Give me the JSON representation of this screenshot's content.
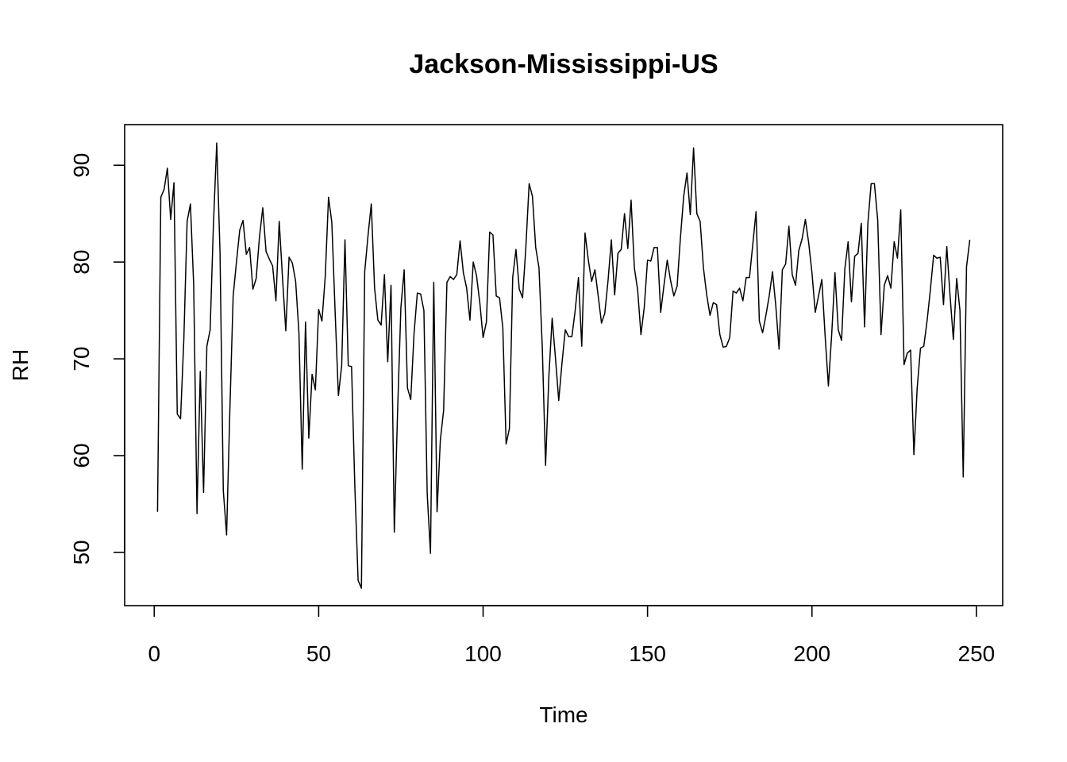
{
  "chart_data": {
    "type": "line",
    "title": "Jackson-Mississippi-US",
    "xlabel": "Time",
    "ylabel": "RH",
    "xlim": [
      -9,
      258
    ],
    "ylim": [
      44.5,
      94.2
    ],
    "x_ticks": [
      0,
      50,
      100,
      150,
      200,
      250
    ],
    "y_ticks": [
      50,
      60,
      70,
      80,
      90
    ],
    "grid": false,
    "legend": "none",
    "line_color": "#000000",
    "series": [
      {
        "values": [
          54.2,
          86.7,
          87.5,
          89.7,
          84.4,
          88.2,
          64.3,
          63.8,
          72.0,
          84.2,
          86.0,
          77.6,
          54.0,
          68.7,
          56.2,
          71.3,
          73.0,
          83.9,
          92.3,
          81.0,
          56.4,
          51.8,
          64.7,
          76.5,
          80.0,
          83.3,
          84.3,
          80.8,
          81.5,
          77.2,
          78.3,
          82.6,
          85.6,
          81.1,
          80.3,
          79.6,
          76.0,
          84.2,
          78.4,
          72.9,
          80.5,
          79.9,
          78.0,
          72.7,
          58.6,
          73.8,
          61.8,
          68.4,
          66.8,
          75.1,
          73.9,
          78.5,
          86.7,
          84.1,
          74.9,
          66.2,
          69.3,
          82.3,
          69.3,
          69.2,
          56.8,
          47.1,
          46.3,
          79.0,
          82.7,
          86.0,
          77.3,
          74.0,
          73.5,
          78.7,
          69.7,
          77.6,
          52.1,
          64.6,
          75.3,
          79.2,
          67.0,
          65.8,
          72.6,
          76.8,
          76.7,
          75.0,
          56.1,
          49.9,
          77.9,
          54.2,
          61.6,
          64.7,
          77.9,
          78.5,
          78.2,
          78.7,
          82.2,
          78.9,
          77.3,
          74.0,
          80.0,
          78.6,
          75.8,
          72.2,
          73.8,
          83.1,
          82.8,
          76.5,
          76.3,
          73.2,
          61.2,
          62.8,
          78.4,
          81.3,
          77.2,
          76.3,
          81.5,
          88.1,
          86.8,
          81.5,
          79.4,
          71.2,
          59.0,
          68.2,
          74.2,
          70.1,
          65.7,
          69.6,
          73.0,
          72.3,
          72.3,
          75.0,
          78.4,
          71.3,
          83.0,
          80.2,
          78.0,
          79.2,
          76.5,
          73.7,
          74.7,
          78.1,
          82.3,
          76.6,
          80.9,
          81.3,
          85.0,
          81.4,
          86.4,
          79.4,
          77.1,
          72.5,
          75.3,
          80.2,
          80.1,
          81.5,
          81.5,
          74.8,
          77.6,
          80.2,
          78.1,
          76.5,
          77.5,
          82.5,
          86.8,
          89.2,
          84.9,
          91.8,
          85.0,
          84.2,
          79.4,
          76.6,
          74.5,
          75.8,
          75.6,
          72.5,
          71.2,
          71.3,
          72.2,
          77.0,
          76.8,
          77.3,
          76.0,
          78.4,
          78.4,
          81.8,
          85.2,
          73.9,
          72.7,
          74.5,
          76.5,
          79.0,
          75.5,
          71.0,
          79.2,
          79.8,
          83.7,
          78.7,
          77.6,
          81.2,
          82.4,
          84.4,
          82.0,
          78.9,
          74.8,
          76.5,
          78.2,
          72.4,
          67.2,
          72.5,
          78.9,
          73.0,
          71.9,
          79.3,
          82.1,
          75.9,
          80.6,
          80.9,
          84.0,
          73.3,
          84.0,
          88.1,
          88.1,
          84.3,
          72.5,
          77.6,
          78.6,
          77.3,
          82.1,
          80.4,
          85.4,
          69.4,
          70.6,
          70.9,
          60.1,
          67.0,
          71.1,
          71.3,
          73.9,
          77.1,
          80.7,
          80.4,
          80.5,
          75.6,
          81.6,
          76.5,
          72.0,
          78.3,
          75.0,
          57.8,
          79.5,
          82.3
        ]
      }
    ]
  }
}
